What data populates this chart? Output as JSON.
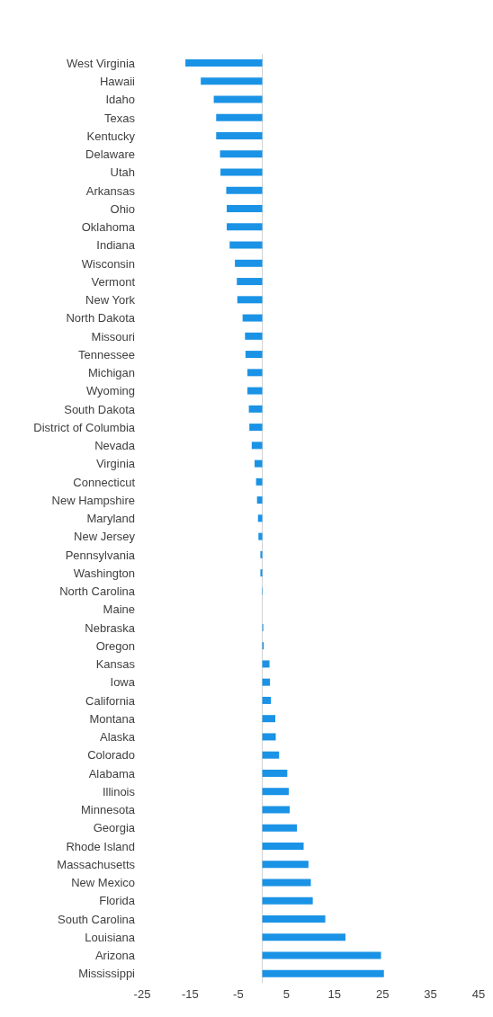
{
  "chart_data": {
    "type": "bar",
    "orientation": "horizontal",
    "categories": [
      "West Virginia",
      "Hawaii",
      "Idaho",
      "Texas",
      "Kentucky",
      "Delaware",
      "Utah",
      "Arkansas",
      "Ohio",
      "Oklahoma",
      "Indiana",
      "Wisconsin",
      "Vermont",
      "New York",
      "North Dakota",
      "Missouri",
      "Tennessee",
      "Michigan",
      "Wyoming",
      "South Dakota",
      "District of Columbia",
      "Nevada",
      "Virginia",
      "Connecticut",
      "New Hampshire",
      "Maryland",
      "New Jersey",
      "Pennsylvania",
      "Washington",
      "North Carolina",
      "Maine",
      "Nebraska",
      "Oregon",
      "Kansas",
      "Iowa",
      "California",
      "Montana",
      "Alaska",
      "Colorado",
      "Alabama",
      "Illinois",
      "Minnesota",
      "Georgia",
      "Rhode Island",
      "Massachusetts",
      "New Mexico",
      "Florida",
      "South Carolina",
      "Louisiana",
      "Arizona",
      "Mississippi"
    ],
    "values": [
      -16.0,
      -12.8,
      -10.1,
      -9.6,
      -9.6,
      -8.8,
      -8.7,
      -7.5,
      -7.4,
      -7.4,
      -6.8,
      -5.7,
      -5.3,
      -5.2,
      -4.1,
      -3.6,
      -3.5,
      -3.1,
      -3.1,
      -2.8,
      -2.7,
      -2.2,
      -1.6,
      -1.3,
      -1.1,
      -0.9,
      -0.8,
      -0.4,
      -0.4,
      -0.1,
      0,
      0.2,
      0.3,
      1.5,
      1.6,
      1.8,
      2.7,
      2.8,
      3.5,
      5.2,
      5.5,
      5.7,
      7.2,
      8.6,
      9.6,
      10.1,
      10.5,
      13.1,
      17.3,
      24.7,
      25.3
    ],
    "color": "#1a93e6",
    "xlim": [
      -25,
      45
    ],
    "xticks": [
      -25,
      -15,
      -5,
      5,
      15,
      25,
      35,
      45
    ],
    "grid": false,
    "legend": false
  }
}
